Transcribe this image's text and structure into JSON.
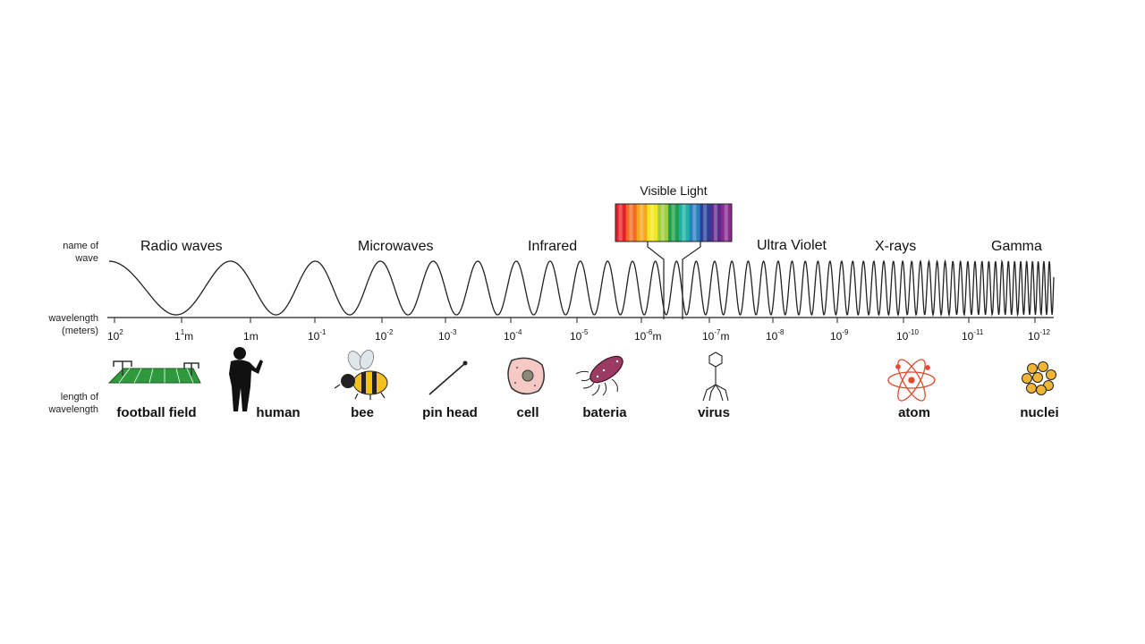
{
  "side_labels": {
    "name_of_wave": [
      "name of",
      "wave"
    ],
    "wavelength": [
      "wavelength",
      "(meters)"
    ],
    "length_of_wavelength": [
      "length of",
      "wavelength"
    ]
  },
  "bands": [
    {
      "key": "radio",
      "label": "Radio waves"
    },
    {
      "key": "micro",
      "label": "Microwaves"
    },
    {
      "key": "infrared",
      "label": "Infrared"
    },
    {
      "key": "uv",
      "label": "Ultra Violet"
    },
    {
      "key": "xrays",
      "label": "X-rays"
    },
    {
      "key": "gamma",
      "label": "Gamma"
    }
  ],
  "visible_light": {
    "label": "Visible Light",
    "colors": [
      "#e8202a",
      "#f26b21",
      "#f7a51c",
      "#f4e61c",
      "#9fcd3a",
      "#1f9e4b",
      "#1fb1a4",
      "#2a7fc1",
      "#2b3f98",
      "#5d2a8c",
      "#8a2a8e"
    ]
  },
  "ticks": [
    {
      "base": "10",
      "exp": "2",
      "unit": ""
    },
    {
      "base": "1",
      "exp": "1",
      "unit": "m"
    },
    {
      "base": "1",
      "exp": "",
      "unit": "m"
    },
    {
      "base": "10",
      "exp": "-1",
      "unit": ""
    },
    {
      "base": "10",
      "exp": "-2",
      "unit": ""
    },
    {
      "base": "10",
      "exp": "-3",
      "unit": ""
    },
    {
      "base": "10",
      "exp": "-4",
      "unit": ""
    },
    {
      "base": "10",
      "exp": "-5",
      "unit": ""
    },
    {
      "base": "10",
      "exp": "-6",
      "unit": "m"
    },
    {
      "base": "10",
      "exp": "-7",
      "unit": "m"
    },
    {
      "base": "10",
      "exp": "-8",
      "unit": ""
    },
    {
      "base": "10",
      "exp": "-9",
      "unit": ""
    },
    {
      "base": "10",
      "exp": "-10",
      "unit": ""
    },
    {
      "base": "10",
      "exp": "-11",
      "unit": ""
    },
    {
      "base": "10",
      "exp": "-12",
      "unit": ""
    }
  ],
  "objects": [
    {
      "key": "football",
      "label": "football field",
      "icon": "football-field-icon"
    },
    {
      "key": "human",
      "label": "human",
      "icon": "human-silhouette-icon"
    },
    {
      "key": "bee",
      "label": "bee",
      "icon": "bee-icon"
    },
    {
      "key": "pin",
      "label": "pin head",
      "icon": "pin-icon"
    },
    {
      "key": "cell",
      "label": "cell",
      "icon": "cell-icon"
    },
    {
      "key": "bacteria",
      "label": "bateria",
      "icon": "bacteria-icon"
    },
    {
      "key": "virus",
      "label": "virus",
      "icon": "virus-icon"
    },
    {
      "key": "atom",
      "label": "atom",
      "icon": "atom-icon"
    },
    {
      "key": "nuclei",
      "label": "nuclei",
      "icon": "nuclei-icon"
    }
  ]
}
